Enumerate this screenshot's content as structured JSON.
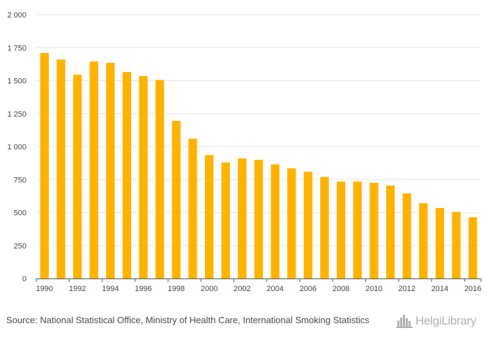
{
  "chart_data": {
    "type": "bar",
    "categories": [
      "1990",
      "1991",
      "1992",
      "1993",
      "1994",
      "1995",
      "1996",
      "1997",
      "1998",
      "1999",
      "2000",
      "2001",
      "2002",
      "2003",
      "2004",
      "2005",
      "2006",
      "2007",
      "2008",
      "2009",
      "2010",
      "2011",
      "2012",
      "2013",
      "2014",
      "2015",
      "2016"
    ],
    "values": [
      1710,
      1660,
      1545,
      1645,
      1635,
      1565,
      1535,
      1505,
      1195,
      1060,
      935,
      880,
      910,
      900,
      865,
      835,
      810,
      770,
      735,
      735,
      725,
      705,
      645,
      570,
      535,
      505,
      465
    ],
    "x_tick_labels": [
      "1990",
      "1992",
      "1994",
      "1996",
      "1998",
      "2000",
      "2002",
      "2004",
      "2006",
      "2008",
      "2010",
      "2012",
      "2014",
      "2016"
    ],
    "y_tick_labels": [
      "0",
      "250",
      "500",
      "750",
      "1 000",
      "1 250",
      "1 500",
      "1 750",
      "2 000"
    ],
    "ylim": [
      0,
      2000
    ],
    "y_ticks": [
      0,
      250,
      500,
      750,
      1000,
      1250,
      1500,
      1750,
      2000
    ],
    "grid": true,
    "bar_color": "#FFB300",
    "title": "",
    "xlabel": "",
    "ylabel": ""
  },
  "footer": {
    "source": "Source: National Statistical Office, Ministry of Health Care, International Smoking Statistics",
    "logo_text": "HelgiLibrary",
    "logo_icon": "city-skyline-icon"
  }
}
